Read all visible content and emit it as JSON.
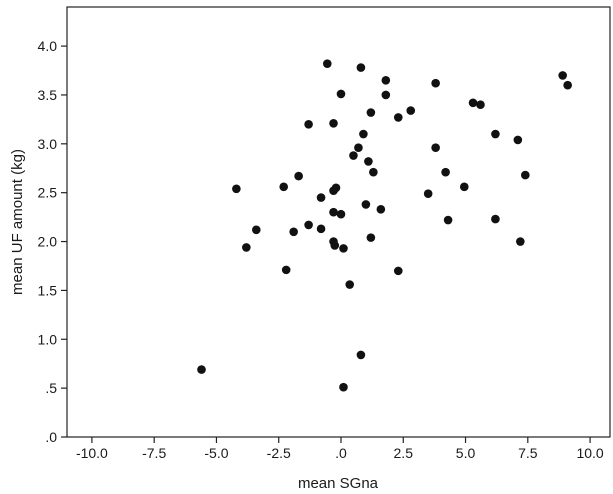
{
  "chart_data": {
    "type": "scatter",
    "title": "",
    "xlabel": "mean SGna",
    "ylabel": "mean UF amount (kg)",
    "xlim": [
      -11.0,
      10.8
    ],
    "ylim": [
      0.0,
      4.4
    ],
    "x_ticks": [
      -10.0,
      -7.5,
      -5.0,
      -2.5,
      0.0,
      2.5,
      5.0,
      7.5,
      10.0
    ],
    "x_tick_labels": [
      "-10.0",
      "-7.5",
      "-5.0",
      "-2.5",
      ".0",
      "2.5",
      "5.0",
      "7.5",
      "10.0"
    ],
    "y_ticks": [
      0.0,
      0.5,
      1.0,
      1.5,
      2.0,
      2.5,
      3.0,
      3.5,
      4.0
    ],
    "y_tick_labels": [
      ".0",
      ".5",
      "1.0",
      "1.5",
      "2.0",
      "2.5",
      "3.0",
      "3.5",
      "4.0"
    ],
    "grid": false,
    "legend": "none",
    "point_color": "#111111",
    "points": [
      [
        -5.6,
        0.69
      ],
      [
        -4.2,
        2.54
      ],
      [
        -3.8,
        1.94
      ],
      [
        -3.4,
        2.12
      ],
      [
        -2.3,
        2.56
      ],
      [
        -2.2,
        1.71
      ],
      [
        -1.9,
        2.1
      ],
      [
        -1.7,
        2.67
      ],
      [
        -1.3,
        3.2
      ],
      [
        -1.3,
        2.17
      ],
      [
        -0.8,
        2.13
      ],
      [
        -0.8,
        2.45
      ],
      [
        -0.55,
        3.82
      ],
      [
        -0.3,
        3.21
      ],
      [
        -0.3,
        2.3
      ],
      [
        -0.3,
        2.52
      ],
      [
        -0.3,
        2.0
      ],
      [
        -0.25,
        1.96
      ],
      [
        -0.2,
        2.55
      ],
      [
        0.0,
        2.28
      ],
      [
        0.0,
        3.51
      ],
      [
        0.1,
        1.93
      ],
      [
        0.1,
        0.51
      ],
      [
        0.35,
        1.56
      ],
      [
        0.5,
        2.88
      ],
      [
        0.7,
        2.96
      ],
      [
        0.8,
        0.84
      ],
      [
        0.8,
        3.78
      ],
      [
        0.9,
        3.1
      ],
      [
        1.0,
        2.38
      ],
      [
        1.1,
        2.82
      ],
      [
        1.2,
        3.32
      ],
      [
        1.2,
        2.04
      ],
      [
        1.3,
        2.71
      ],
      [
        1.6,
        2.33
      ],
      [
        1.8,
        3.65
      ],
      [
        1.8,
        3.5
      ],
      [
        2.3,
        3.27
      ],
      [
        2.3,
        1.7
      ],
      [
        2.8,
        3.34
      ],
      [
        3.5,
        2.49
      ],
      [
        3.8,
        3.62
      ],
      [
        3.8,
        2.96
      ],
      [
        4.2,
        2.71
      ],
      [
        4.3,
        2.22
      ],
      [
        4.95,
        2.56
      ],
      [
        5.3,
        3.42
      ],
      [
        5.6,
        3.4
      ],
      [
        6.2,
        3.1
      ],
      [
        6.2,
        2.23
      ],
      [
        7.1,
        3.04
      ],
      [
        7.2,
        2.0
      ],
      [
        7.4,
        2.68
      ],
      [
        8.9,
        3.7
      ],
      [
        9.1,
        3.6
      ]
    ]
  }
}
